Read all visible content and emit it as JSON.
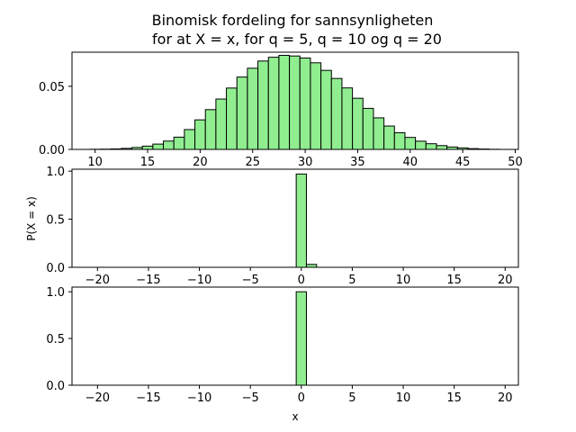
{
  "figure": {
    "title_line1": "Binomisk fordeling for sannsynligheten",
    "title_line2": "for at X = x, for q = 5, q = 10 og q = 20",
    "bar_color": "#90ee90",
    "edge_color": "#000000"
  },
  "chart_data": [
    {
      "type": "bar",
      "title": "",
      "xlabel": "",
      "ylabel": "",
      "xlim": [
        7.8,
        50.3
      ],
      "ylim": [
        0,
        0.077
      ],
      "xticks": [
        10,
        15,
        20,
        25,
        30,
        35,
        40,
        45,
        50
      ],
      "yticks": [
        0.0,
        0.05
      ],
      "ytick_labels": [
        "0.00",
        "0.05"
      ],
      "x": [
        9,
        10,
        11,
        12,
        13,
        14,
        15,
        16,
        17,
        18,
        19,
        20,
        21,
        22,
        23,
        24,
        25,
        26,
        27,
        28,
        29,
        30,
        31,
        32,
        33,
        34,
        35,
        36,
        37,
        38,
        39,
        40,
        41,
        42,
        43,
        44,
        45,
        46,
        47,
        48
      ],
      "values": [
        0.0,
        0.0001,
        0.0002,
        0.0004,
        0.0008,
        0.0015,
        0.0026,
        0.0042,
        0.0066,
        0.0097,
        0.0157,
        0.0234,
        0.0315,
        0.0399,
        0.0486,
        0.0573,
        0.0643,
        0.07,
        0.073,
        0.0745,
        0.074,
        0.0724,
        0.0686,
        0.0626,
        0.0562,
        0.0487,
        0.0405,
        0.0325,
        0.025,
        0.0185,
        0.0132,
        0.0095,
        0.0065,
        0.0045,
        0.003,
        0.0019,
        0.0012,
        0.0006,
        0.0003,
        0.0001
      ]
    },
    {
      "type": "bar",
      "title": "",
      "xlabel": "",
      "ylabel": "P(X = x)",
      "xlim": [
        -22.5,
        21.3
      ],
      "ylim": [
        0,
        1.02
      ],
      "xticks": [
        -20,
        -15,
        -10,
        -5,
        0,
        5,
        10,
        15,
        20
      ],
      "xtick_labels": [
        "−20",
        "−15",
        "−10",
        "−5",
        "0",
        "5",
        "10",
        "15",
        "20"
      ],
      "yticks": [
        0.0,
        0.5,
        1.0
      ],
      "ytick_labels": [
        "0.0",
        "0.5",
        "1.0"
      ],
      "x": [
        0,
        1
      ],
      "values": [
        0.97,
        0.03
      ]
    },
    {
      "type": "bar",
      "title": "",
      "xlabel": "x",
      "ylabel": "",
      "xlim": [
        -22.5,
        21.3
      ],
      "ylim": [
        0,
        1.05
      ],
      "xticks": [
        -20,
        -15,
        -10,
        -5,
        0,
        5,
        10,
        15,
        20
      ],
      "xtick_labels": [
        "−20",
        "−15",
        "−10",
        "−5",
        "0",
        "5",
        "10",
        "15",
        "20"
      ],
      "yticks": [
        0.0,
        0.5,
        1.0
      ],
      "ytick_labels": [
        "0.0",
        "0.5",
        "1.0"
      ],
      "x": [
        0
      ],
      "values": [
        1.0
      ]
    }
  ]
}
